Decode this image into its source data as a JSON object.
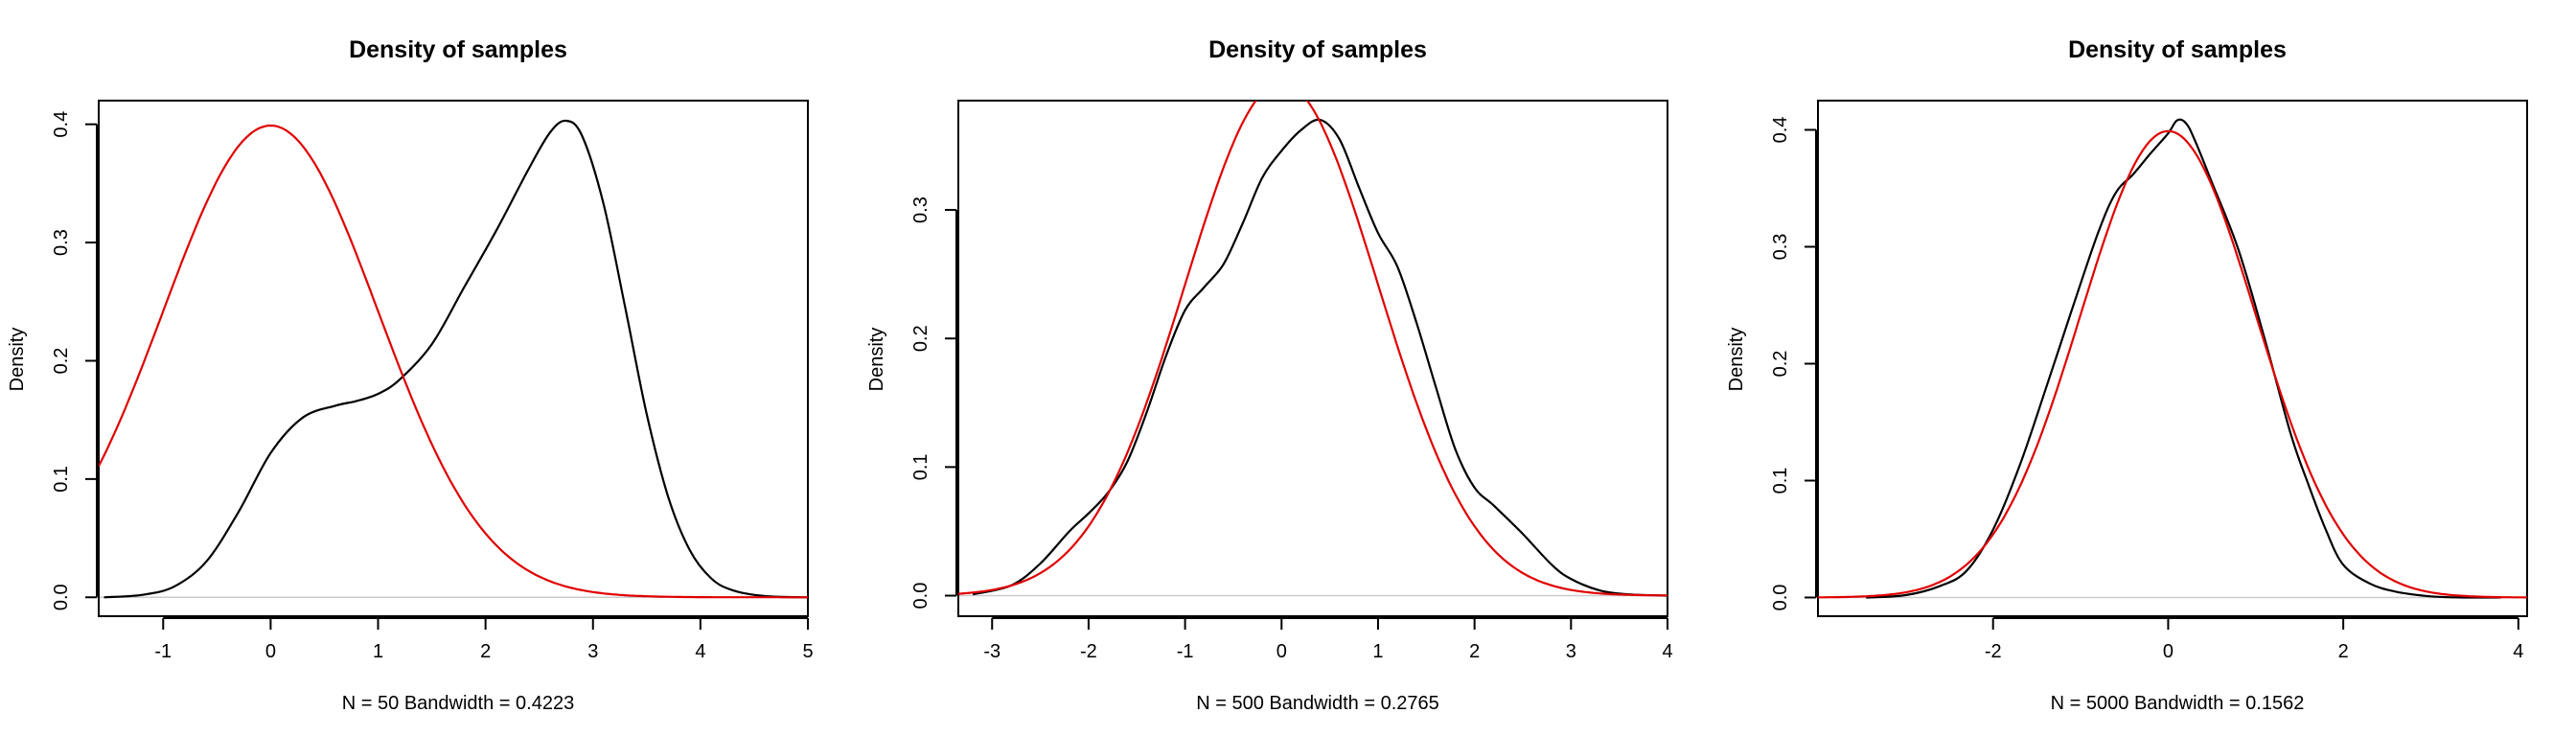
{
  "colors": {
    "sample_density": "#000000",
    "normal_density": "#e00000",
    "zero_line": "#cccccc",
    "frame": "#000000"
  },
  "chart_data": [
    {
      "type": "line",
      "title": "Density of samples",
      "xlabel": "N = 50   Bandwidth = 0.4223",
      "ylabel": "Density",
      "xlim": [
        -1.6,
        5.0
      ],
      "ylim": [
        -0.016,
        0.42
      ],
      "xticks": [
        -1,
        0,
        1,
        2,
        3,
        4,
        5
      ],
      "yticks": [
        0.0,
        0.1,
        0.2,
        0.3,
        0.4
      ],
      "series": [
        {
          "role": "sample_density",
          "x": [
            -1.55,
            -1.2,
            -0.9,
            -0.6,
            -0.3,
            0.0,
            0.3,
            0.6,
            0.8,
            1.0,
            1.2,
            1.5,
            1.8,
            2.1,
            2.4,
            2.6,
            2.75,
            2.9,
            3.1,
            3.3,
            3.5,
            3.7,
            3.9,
            4.1,
            4.3,
            4.6,
            5.0
          ],
          "y": [
            0.0,
            0.002,
            0.009,
            0.03,
            0.072,
            0.122,
            0.152,
            0.162,
            0.166,
            0.172,
            0.184,
            0.214,
            0.262,
            0.31,
            0.362,
            0.393,
            0.403,
            0.39,
            0.332,
            0.245,
            0.155,
            0.085,
            0.04,
            0.016,
            0.006,
            0.001,
            0.0
          ]
        },
        {
          "role": "normal_density",
          "function": "normal_pdf",
          "mean": 0,
          "sd": 1,
          "x_from": -1.6,
          "x_to": 5.0
        }
      ]
    },
    {
      "type": "line",
      "title": "Density of samples",
      "xlabel": "N = 500   Bandwidth = 0.2765",
      "ylabel": "Density",
      "xlim": [
        -3.35,
        4.0
      ],
      "ylim": [
        -0.016,
        0.385
      ],
      "xticks": [
        -3,
        -2,
        -1,
        0,
        1,
        2,
        3,
        4
      ],
      "yticks": [
        0.0,
        0.1,
        0.2,
        0.3
      ],
      "series": [
        {
          "role": "sample_density",
          "x": [
            -3.2,
            -2.8,
            -2.5,
            -2.2,
            -2.0,
            -1.8,
            -1.6,
            -1.4,
            -1.2,
            -1.0,
            -0.8,
            -0.6,
            -0.4,
            -0.2,
            0.0,
            0.2,
            0.4,
            0.6,
            0.8,
            1.0,
            1.2,
            1.4,
            1.6,
            1.8,
            2.0,
            2.2,
            2.5,
            2.8,
            3.0,
            3.3,
            3.6,
            4.0
          ],
          "y": [
            0.001,
            0.008,
            0.025,
            0.05,
            0.064,
            0.08,
            0.104,
            0.142,
            0.186,
            0.222,
            0.24,
            0.258,
            0.29,
            0.325,
            0.346,
            0.362,
            0.37,
            0.355,
            0.318,
            0.282,
            0.256,
            0.212,
            0.162,
            0.114,
            0.084,
            0.07,
            0.048,
            0.024,
            0.013,
            0.004,
            0.001,
            0.0
          ]
        },
        {
          "role": "normal_density",
          "function": "normal_pdf",
          "mean": 0,
          "sd": 1,
          "x_from": -3.35,
          "x_to": 4.0
        }
      ]
    },
    {
      "type": "line",
      "title": "Density of samples",
      "xlabel": "N = 5000   Bandwidth = 0.1562",
      "ylabel": "Density",
      "xlim": [
        -4.0,
        4.1
      ],
      "ylim": [
        -0.016,
        0.425
      ],
      "xticks": [
        -2,
        0,
        2,
        4
      ],
      "yticks": [
        0.0,
        0.1,
        0.2,
        0.3,
        0.4
      ],
      "series": [
        {
          "role": "sample_density",
          "x": [
            -3.45,
            -3.0,
            -2.6,
            -2.3,
            -2.0,
            -1.7,
            -1.4,
            -1.1,
            -0.8,
            -0.6,
            -0.4,
            -0.2,
            0.0,
            0.1,
            0.2,
            0.3,
            0.5,
            0.8,
            1.1,
            1.4,
            1.6,
            1.8,
            2.0,
            2.3,
            2.6,
            3.0,
            3.4,
            3.8
          ],
          "y": [
            0.0,
            0.002,
            0.01,
            0.023,
            0.058,
            0.112,
            0.178,
            0.246,
            0.312,
            0.346,
            0.362,
            0.38,
            0.397,
            0.408,
            0.406,
            0.392,
            0.355,
            0.298,
            0.222,
            0.14,
            0.097,
            0.058,
            0.028,
            0.012,
            0.005,
            0.001,
            0.0,
            0.0
          ]
        },
        {
          "role": "normal_density",
          "function": "normal_pdf",
          "mean": 0,
          "sd": 1,
          "x_from": -4.0,
          "x_to": 4.1
        }
      ]
    }
  ]
}
